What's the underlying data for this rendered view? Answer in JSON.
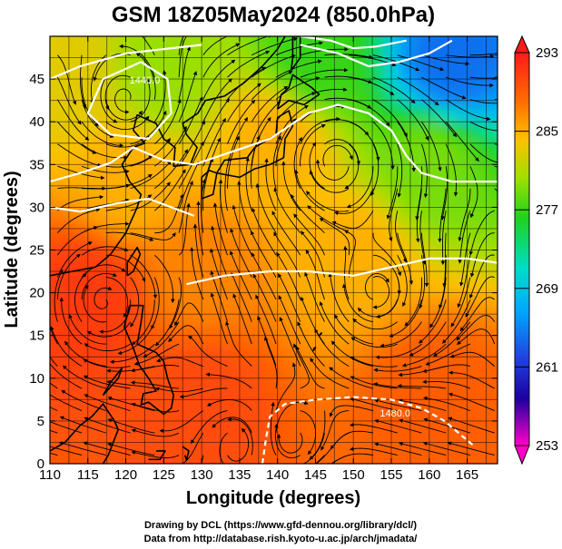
{
  "chart_data": {
    "type": "heatmap",
    "title": "GSM 18Z05May2024 (850.0hPa)",
    "xlabel": "Longitude (degrees)",
    "ylabel": "Latitude  (degrees)",
    "xlim": [
      110,
      169
    ],
    "ylim": [
      0,
      50
    ],
    "x_ticks": [
      110,
      115,
      120,
      125,
      130,
      135,
      140,
      145,
      150,
      155,
      160,
      165
    ],
    "y_ticks": [
      0,
      5,
      10,
      15,
      20,
      25,
      30,
      35,
      40,
      45
    ],
    "grid": true,
    "field": "temperature",
    "colorbar": {
      "min": 253,
      "max": 293,
      "tick_labels": [
        "293",
        "285",
        "277",
        "269",
        "261",
        "253"
      ],
      "tick_values": [
        293,
        285,
        277,
        269,
        261,
        253
      ],
      "colors": [
        "#ff1a1a",
        "#ff6a00",
        "#ffc000",
        "#9ee000",
        "#1ed21e",
        "#00dcc8",
        "#00a6ff",
        "#2040e0",
        "#1c00a0",
        "#ff00c8"
      ]
    },
    "contours": [
      {
        "label": "1440.0",
        "lon": 122.5,
        "lat": 44.5
      },
      {
        "label": "1480.0",
        "lon": 155.5,
        "lat": 5.5
      }
    ],
    "temperature_samples": [
      {
        "lon": 163,
        "lat": 47,
        "value": 264
      },
      {
        "lon": 145,
        "lat": 47,
        "value": 277
      },
      {
        "lon": 125,
        "lat": 46,
        "value": 280
      },
      {
        "lon": 112,
        "lat": 45,
        "value": 283
      },
      {
        "lon": 140,
        "lat": 38,
        "value": 285
      },
      {
        "lon": 120,
        "lat": 33,
        "value": 285
      },
      {
        "lon": 160,
        "lat": 35,
        "value": 279
      },
      {
        "lon": 150,
        "lat": 24,
        "value": 285
      },
      {
        "lon": 130,
        "lat": 22,
        "value": 287
      },
      {
        "lon": 115,
        "lat": 20,
        "value": 291
      },
      {
        "lon": 130,
        "lat": 8,
        "value": 290
      },
      {
        "lon": 160,
        "lat": 8,
        "value": 289
      }
    ]
  },
  "credits": {
    "line1": "Drawing by DCL (https://www.gfd-dennou.org/library/dcl/)",
    "line2": "Data from http://database.rish.kyoto-u.ac.jp/arch/jmadata/"
  }
}
